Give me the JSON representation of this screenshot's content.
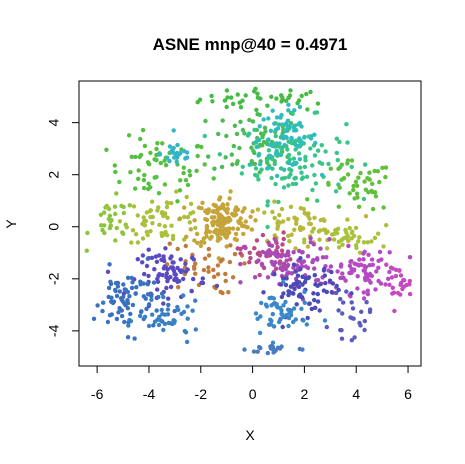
{
  "chart_data": {
    "type": "scatter",
    "title": "ASNE mnp@40 = 0.4971",
    "xlabel": "X",
    "ylabel": "Y",
    "xlim": [
      -6.7,
      6.5
    ],
    "ylim": [
      -5.35,
      5.6
    ],
    "x_ticks": [
      -6,
      -4,
      -2,
      0,
      2,
      4,
      6
    ],
    "y_ticks": [
      -4,
      -2,
      0,
      2,
      4
    ],
    "x_tick_labels": [
      "-6",
      "-4",
      "-2",
      "0",
      "2",
      "4",
      "6"
    ],
    "y_tick_labels": [
      "-4",
      "-2",
      "0",
      "2",
      "4"
    ],
    "grid": false,
    "legend": "none",
    "point_size": 2.2,
    "clusters": [
      {
        "color": "#44bb44",
        "cx": 0.6,
        "cy": 4.9,
        "rx": 2.4,
        "ry": 0.4,
        "n": 40
      },
      {
        "color": "#55c040",
        "cx": -3.6,
        "cy": 2.2,
        "rx": 1.8,
        "ry": 1.1,
        "n": 60
      },
      {
        "color": "#4dbb55",
        "cx": 0.2,
        "cy": 3.3,
        "rx": 1.6,
        "ry": 1.3,
        "n": 70
      },
      {
        "color": "#38c58a",
        "cx": 1.6,
        "cy": 2.6,
        "rx": 1.8,
        "ry": 1.4,
        "n": 110
      },
      {
        "color": "#2fbcc0",
        "cx": 1.2,
        "cy": 3.4,
        "rx": 1.2,
        "ry": 1.0,
        "n": 70
      },
      {
        "color": "#33b5c8",
        "cx": -2.9,
        "cy": 2.8,
        "rx": 0.6,
        "ry": 0.5,
        "n": 25
      },
      {
        "color": "#60c03a",
        "cx": 4.0,
        "cy": 1.5,
        "rx": 1.3,
        "ry": 0.9,
        "n": 45
      },
      {
        "color": "#8cc43c",
        "cx": -5.4,
        "cy": 0.2,
        "rx": 0.8,
        "ry": 0.8,
        "n": 30
      },
      {
        "color": "#a8c03a",
        "cx": -3.4,
        "cy": 0.3,
        "rx": 1.4,
        "ry": 0.8,
        "n": 60
      },
      {
        "color": "#b8b83a",
        "cx": 1.6,
        "cy": 0.1,
        "rx": 1.6,
        "ry": 0.7,
        "n": 60
      },
      {
        "color": "#a9c23e",
        "cx": 3.6,
        "cy": -0.5,
        "rx": 1.4,
        "ry": 0.5,
        "n": 40
      },
      {
        "color": "#c5a43a",
        "cx": -1.2,
        "cy": 0.2,
        "rx": 1.0,
        "ry": 0.9,
        "n": 150
      },
      {
        "color": "#c07a3a",
        "cx": -2.0,
        "cy": -1.6,
        "rx": 1.3,
        "ry": 0.9,
        "n": 40
      },
      {
        "color": "#b94a8a",
        "cx": 0.5,
        "cy": -1.0,
        "rx": 0.9,
        "ry": 0.7,
        "n": 40
      },
      {
        "color": "#a94ab9",
        "cx": 1.5,
        "cy": -1.5,
        "rx": 1.6,
        "ry": 0.9,
        "n": 90
      },
      {
        "color": "#b64ac4",
        "cx": 4.2,
        "cy": -1.7,
        "rx": 1.3,
        "ry": 0.8,
        "n": 70
      },
      {
        "color": "#c44ac0",
        "cx": 5.6,
        "cy": -2.2,
        "rx": 0.5,
        "ry": 0.6,
        "n": 25
      },
      {
        "color": "#5a4ac0",
        "cx": -3.1,
        "cy": -1.8,
        "rx": 1.2,
        "ry": 0.8,
        "n": 80
      },
      {
        "color": "#4a4ab9",
        "cx": 2.0,
        "cy": -2.4,
        "rx": 1.2,
        "ry": 0.9,
        "n": 70
      },
      {
        "color": "#3a70c0",
        "cx": -4.8,
        "cy": -2.8,
        "rx": 1.2,
        "ry": 1.1,
        "n": 80
      },
      {
        "color": "#3a80c4",
        "cx": -3.2,
        "cy": -3.6,
        "rx": 1.1,
        "ry": 0.6,
        "n": 40
      },
      {
        "color": "#3a88c8",
        "cx": 1.0,
        "cy": -3.4,
        "rx": 1.1,
        "ry": 0.9,
        "n": 50
      },
      {
        "color": "#4a7ac0",
        "cx": 0.8,
        "cy": -4.7,
        "rx": 0.9,
        "ry": 0.2,
        "n": 20
      },
      {
        "color": "#5a5ac0",
        "cx": 3.8,
        "cy": -3.5,
        "rx": 0.7,
        "ry": 0.7,
        "n": 25
      }
    ]
  }
}
